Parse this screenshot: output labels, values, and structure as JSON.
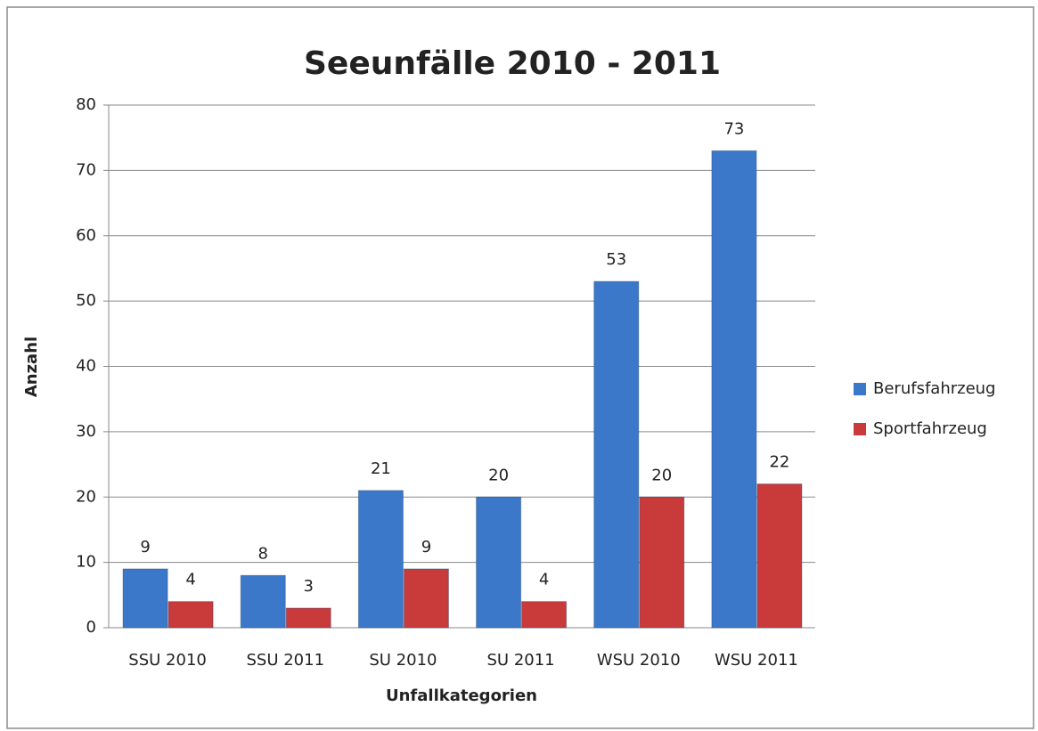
{
  "chart_data": {
    "type": "bar",
    "title": "Seeunfälle 2010 - 2011",
    "x_label": "Unfallkategorien",
    "y_label": "Anzahl",
    "categories": [
      "SSU 2010",
      "SSU 2011",
      "SU 2010",
      "SU 2011",
      "WSU 2010",
      "WSU 2011"
    ],
    "series": [
      {
        "name": "Berufsfahrzeug",
        "color": "#3b78c9",
        "values": [
          9,
          8,
          21,
          20,
          53,
          73
        ]
      },
      {
        "name": "Sportfahrzeug",
        "color": "#c93a3a",
        "values": [
          4,
          3,
          9,
          4,
          20,
          22
        ]
      }
    ],
    "ylim": [
      0,
      80
    ],
    "yticks": [
      0,
      10,
      20,
      30,
      40,
      50,
      60,
      70,
      80
    ],
    "grid": true,
    "legend": "right"
  }
}
